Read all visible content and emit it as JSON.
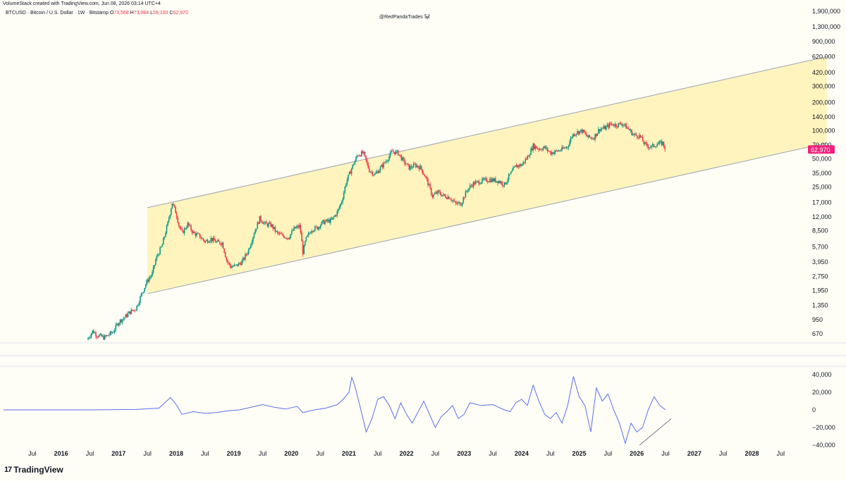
{
  "header": {
    "credit": "VolumeStack created with TradingView.com, Jun 08, 2026 03:14 UTC+4",
    "symbol": "BTCUSD · Bitcoin / U.S. Dollar · 1W · Bitstamp",
    "open_label": "O",
    "open": "73,568",
    "high_label": "H",
    "high": "73,984",
    "low_label": "L",
    "low": "59,100",
    "close_label": "C",
    "close": "62,970",
    "watermark": "@RedPandaTrades 🐼"
  },
  "footer": {
    "logo_mark": "17",
    "logo_text": "TradingView"
  },
  "colors": {
    "up": "#089981",
    "down": "#f23645",
    "channel_fill": "#fff3b8",
    "channel_line": "#9aa3ad",
    "oscillator": "#5b6ff0",
    "price_badge": "#f0217a"
  },
  "chart_data": [
    {
      "type": "candlestick",
      "title": "BTCUSD · Bitcoin / U.S. Dollar · 1W · Bitstamp",
      "y_scale": "log",
      "y_ticks": [
        "1,900,000",
        "1,300,000",
        "900,000",
        "620,000",
        "420,000",
        "300,000",
        "200,000",
        "140,000",
        "100,000",
        "70,000",
        "50,000",
        "35,000",
        "25,000",
        "17,000",
        "12,000",
        "8,500",
        "5,700",
        "3,950",
        "2,750",
        "1,950",
        "1,350",
        "950",
        "670"
      ],
      "y_tick_values": [
        1900000,
        1300000,
        900000,
        620000,
        420000,
        300000,
        200000,
        140000,
        100000,
        70000,
        50000,
        35000,
        25000,
        17000,
        12000,
        8500,
        5700,
        3950,
        2750,
        1950,
        1350,
        950,
        670
      ],
      "last_price_label": "62,970",
      "last_price": 62970,
      "x_ticks": [
        "Jul",
        "2016",
        "Jul",
        "2017",
        "Jul",
        "2018",
        "Jul",
        "2019",
        "Jul",
        "2020",
        "Jul",
        "2021",
        "Jul",
        "2022",
        "Jul",
        "2023",
        "Jul",
        "2024",
        "Jul",
        "2025",
        "Jul",
        "2026",
        "Jul",
        "2027",
        "Jul",
        "2028",
        "Jul"
      ],
      "x_tick_values": [
        2015.5,
        2016,
        2016.5,
        2017,
        2017.5,
        2018,
        2018.5,
        2019,
        2019.5,
        2020,
        2020.5,
        2021,
        2021.5,
        2022,
        2022.5,
        2023,
        2023.5,
        2024,
        2024.5,
        2025,
        2025.5,
        2026,
        2026.5,
        2027,
        2027.5,
        2028,
        2028.5
      ],
      "channel": {
        "start": 2017.5,
        "end": 2029.3,
        "upper": [
          [
            2017.5,
            15000
          ],
          [
            2029.3,
            620000
          ]
        ],
        "lower": [
          [
            2017.5,
            1800
          ],
          [
            2029.3,
            74000
          ]
        ]
      },
      "price_path": [
        [
          2016.45,
          580
        ],
        [
          2016.55,
          720
        ],
        [
          2016.62,
          650
        ],
        [
          2016.75,
          610
        ],
        [
          2016.9,
          700
        ],
        [
          2017.0,
          900
        ],
        [
          2017.1,
          1000
        ],
        [
          2017.2,
          1150
        ],
        [
          2017.3,
          1250
        ],
        [
          2017.4,
          1800
        ],
        [
          2017.5,
          2500
        ],
        [
          2017.58,
          2900
        ],
        [
          2017.65,
          4300
        ],
        [
          2017.75,
          5800
        ],
        [
          2017.85,
          10000
        ],
        [
          2017.93,
          17000
        ],
        [
          2018.0,
          13000
        ],
        [
          2018.05,
          9500
        ],
        [
          2018.1,
          8000
        ],
        [
          2018.2,
          10000
        ],
        [
          2018.3,
          8000
        ],
        [
          2018.4,
          7500
        ],
        [
          2018.5,
          6500
        ],
        [
          2018.6,
          7000
        ],
        [
          2018.7,
          6400
        ],
        [
          2018.8,
          6300
        ],
        [
          2018.88,
          4000
        ],
        [
          2018.95,
          3500
        ],
        [
          2019.05,
          3600
        ],
        [
          2019.15,
          4000
        ],
        [
          2019.25,
          5200
        ],
        [
          2019.35,
          8000
        ],
        [
          2019.45,
          11500
        ],
        [
          2019.55,
          10000
        ],
        [
          2019.65,
          9800
        ],
        [
          2019.75,
          8000
        ],
        [
          2019.85,
          7500
        ],
        [
          2019.95,
          7200
        ],
        [
          2020.05,
          9000
        ],
        [
          2020.15,
          9500
        ],
        [
          2020.2,
          5000
        ],
        [
          2020.25,
          6800
        ],
        [
          2020.35,
          8800
        ],
        [
          2020.45,
          9200
        ],
        [
          2020.55,
          10500
        ],
        [
          2020.7,
          11000
        ],
        [
          2020.8,
          13500
        ],
        [
          2020.88,
          18000
        ],
        [
          2020.95,
          28000
        ],
        [
          2021.05,
          40000
        ],
        [
          2021.15,
          55000
        ],
        [
          2021.25,
          58000
        ],
        [
          2021.35,
          38000
        ],
        [
          2021.45,
          34000
        ],
        [
          2021.55,
          40000
        ],
        [
          2021.65,
          48000
        ],
        [
          2021.75,
          60000
        ],
        [
          2021.85,
          58000
        ],
        [
          2021.95,
          47000
        ],
        [
          2022.05,
          40000
        ],
        [
          2022.15,
          43000
        ],
        [
          2022.25,
          40000
        ],
        [
          2022.35,
          30000
        ],
        [
          2022.45,
          20000
        ],
        [
          2022.55,
          22000
        ],
        [
          2022.65,
          20000
        ],
        [
          2022.75,
          19500
        ],
        [
          2022.85,
          16500
        ],
        [
          2022.95,
          16800
        ],
        [
          2023.05,
          23000
        ],
        [
          2023.15,
          27000
        ],
        [
          2023.3,
          29000
        ],
        [
          2023.45,
          30000
        ],
        [
          2023.6,
          29000
        ],
        [
          2023.7,
          26500
        ],
        [
          2023.8,
          34000
        ],
        [
          2023.9,
          42000
        ],
        [
          2024.0,
          43000
        ],
        [
          2024.1,
          52000
        ],
        [
          2024.2,
          69000
        ],
        [
          2024.3,
          64000
        ],
        [
          2024.4,
          66000
        ],
        [
          2024.5,
          58000
        ],
        [
          2024.6,
          60000
        ],
        [
          2024.7,
          63000
        ],
        [
          2024.8,
          68000
        ],
        [
          2024.88,
          90000
        ],
        [
          2024.95,
          96000
        ],
        [
          2025.05,
          100000
        ],
        [
          2025.15,
          85000
        ],
        [
          2025.25,
          84000
        ],
        [
          2025.35,
          104000
        ],
        [
          2025.45,
          107000
        ],
        [
          2025.55,
          118000
        ],
        [
          2025.65,
          115000
        ],
        [
          2025.75,
          120000
        ],
        [
          2025.85,
          105000
        ],
        [
          2025.95,
          90000
        ],
        [
          2026.05,
          88000
        ],
        [
          2026.15,
          70000
        ],
        [
          2026.25,
          67000
        ],
        [
          2026.35,
          72000
        ],
        [
          2026.45,
          74000
        ],
        [
          2026.5,
          62970
        ]
      ]
    },
    {
      "type": "line",
      "y_ticks": [
        "40,000",
        "20,000",
        "0",
        "−20,000",
        "−40,000"
      ],
      "y_tick_values": [
        40000,
        20000,
        0,
        -20000,
        -40000
      ],
      "series": [
        {
          "values": [
            [
              2015.0,
              0
            ],
            [
              2016.5,
              0
            ],
            [
              2017.3,
              500
            ],
            [
              2017.7,
              2000
            ],
            [
              2017.9,
              14000
            ],
            [
              2018.0,
              6000
            ],
            [
              2018.1,
              -5000
            ],
            [
              2018.3,
              -2000
            ],
            [
              2018.5,
              -4000
            ],
            [
              2018.7,
              -3000
            ],
            [
              2018.9,
              -1000
            ],
            [
              2019.1,
              0
            ],
            [
              2019.3,
              3000
            ],
            [
              2019.5,
              6000
            ],
            [
              2019.7,
              3000
            ],
            [
              2019.9,
              1000
            ],
            [
              2020.1,
              4000
            ],
            [
              2020.2,
              -3000
            ],
            [
              2020.4,
              0
            ],
            [
              2020.6,
              2000
            ],
            [
              2020.8,
              6000
            ],
            [
              2020.9,
              12000
            ],
            [
              2021.0,
              20000
            ],
            [
              2021.05,
              37000
            ],
            [
              2021.1,
              28000
            ],
            [
              2021.2,
              2000
            ],
            [
              2021.3,
              -25000
            ],
            [
              2021.4,
              -10000
            ],
            [
              2021.5,
              12000
            ],
            [
              2021.6,
              15000
            ],
            [
              2021.7,
              5000
            ],
            [
              2021.8,
              -10000
            ],
            [
              2021.9,
              8000
            ],
            [
              2022.0,
              -5000
            ],
            [
              2022.1,
              -15000
            ],
            [
              2022.3,
              10000
            ],
            [
              2022.4,
              -5000
            ],
            [
              2022.5,
              -20000
            ],
            [
              2022.6,
              -8000
            ],
            [
              2022.7,
              -2000
            ],
            [
              2022.8,
              5000
            ],
            [
              2022.9,
              -10000
            ],
            [
              2023.0,
              -5000
            ],
            [
              2023.1,
              8000
            ],
            [
              2023.3,
              5000
            ],
            [
              2023.5,
              6000
            ],
            [
              2023.6,
              3000
            ],
            [
              2023.7,
              0
            ],
            [
              2023.8,
              -2000
            ],
            [
              2023.9,
              8000
            ],
            [
              2024.0,
              12000
            ],
            [
              2024.1,
              5000
            ],
            [
              2024.2,
              28000
            ],
            [
              2024.3,
              10000
            ],
            [
              2024.4,
              -5000
            ],
            [
              2024.5,
              -10000
            ],
            [
              2024.6,
              -3000
            ],
            [
              2024.7,
              -15000
            ],
            [
              2024.8,
              5000
            ],
            [
              2024.9,
              38000
            ],
            [
              2025.0,
              15000
            ],
            [
              2025.1,
              5000
            ],
            [
              2025.2,
              -25000
            ],
            [
              2025.3,
              25000
            ],
            [
              2025.4,
              10000
            ],
            [
              2025.5,
              18000
            ],
            [
              2025.6,
              0
            ],
            [
              2025.7,
              -15000
            ],
            [
              2025.8,
              -38000
            ],
            [
              2025.9,
              -15000
            ],
            [
              2026.0,
              -25000
            ],
            [
              2026.1,
              -20000
            ],
            [
              2026.2,
              0
            ],
            [
              2026.3,
              15000
            ],
            [
              2026.4,
              5000
            ],
            [
              2026.5,
              0
            ]
          ]
        }
      ],
      "trendline": [
        [
          2026.05,
          -40000
        ],
        [
          2026.6,
          -10000
        ]
      ]
    }
  ]
}
